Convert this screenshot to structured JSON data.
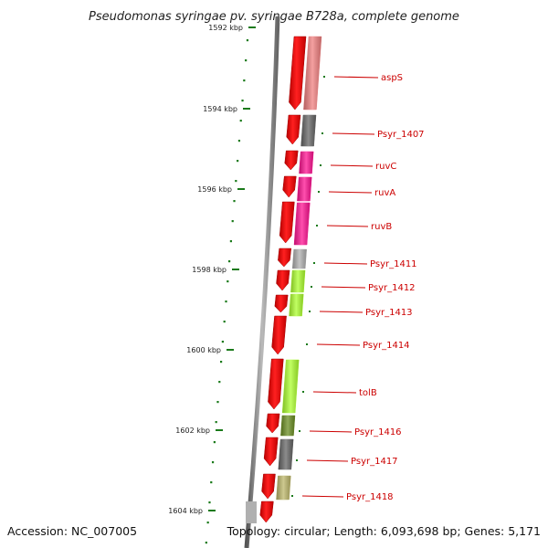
{
  "title": "Pseudomonas syringae pv. syringae B728a, complete genome",
  "footer": {
    "accession": "Accession: NC_007005",
    "summary": "Topology: circular; Length: 6,093,698 bp; Genes: 5,171"
  },
  "colors": {
    "forward_strand": "#ff0000",
    "backbone": "#7a7a7a",
    "tick": "#1a7a1a",
    "label": "#cc0000"
  },
  "ruler": {
    "ticks": [
      {
        "label": "1592 kbp"
      },
      {
        "label": "1594 kbp"
      },
      {
        "label": "1596 kbp"
      },
      {
        "label": "1598 kbp"
      },
      {
        "label": "1600 kbp"
      },
      {
        "label": "1602 kbp"
      },
      {
        "label": "1604 kbp"
      }
    ]
  },
  "genes": [
    {
      "name": "aspS",
      "color": "#f08080"
    },
    {
      "name": "Psyr_1407",
      "color": "#666666"
    },
    {
      "name": "ruvC",
      "color": "#ff1493"
    },
    {
      "name": "ruvA",
      "color": "#ff1493"
    },
    {
      "name": "ruvB",
      "color": "#ff1493"
    },
    {
      "name": "Psyr_1411",
      "color": "#b0b0b0"
    },
    {
      "name": "Psyr_1412",
      "color": "#adff2f"
    },
    {
      "name": "Psyr_1413",
      "color": "#adff2f"
    },
    {
      "name": "Psyr_1414",
      "color": ""
    },
    {
      "name": "tolB",
      "color": "#adff2f"
    },
    {
      "name": "Psyr_1416",
      "color": "#6b8e23"
    },
    {
      "name": "Psyr_1417",
      "color": "#666666"
    },
    {
      "name": "Psyr_1418",
      "color": "#bdb76b"
    }
  ]
}
